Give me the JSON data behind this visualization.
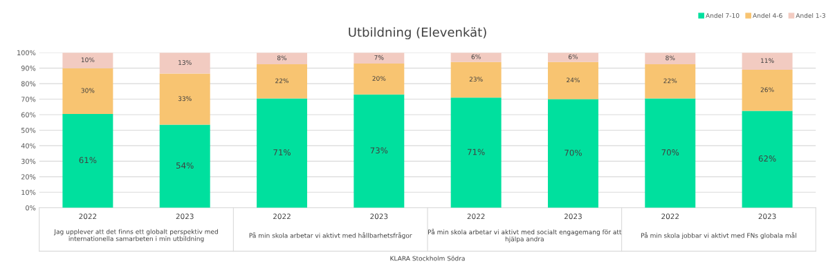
{
  "chart_data": {
    "type": "bar",
    "stacked": true,
    "title": "Utbildning (Elevenkät)",
    "categories": [
      "2022",
      "2023",
      "2022",
      "2023",
      "2022",
      "2023",
      "2022",
      "2023"
    ],
    "series": [
      {
        "name": "Andel 7-10",
        "color": "#00e09e",
        "values": [
          60.5,
          53.5,
          70.5,
          73,
          71,
          70,
          70.5,
          62.5
        ],
        "value_labels": [
          "61%",
          "54%",
          "71%",
          "73%",
          "71%",
          "70%",
          "70%",
          "62%"
        ]
      },
      {
        "name": "Andel 4-6",
        "color": "#f8c471",
        "values": [
          29.5,
          33,
          22,
          20,
          23,
          24,
          22,
          26.5
        ],
        "value_labels": [
          "30%",
          "33%",
          "22%",
          "20%",
          "23%",
          "24%",
          "22%",
          "26%"
        ]
      },
      {
        "name": "Andel 1-3",
        "color": "#f2cbc1",
        "values": [
          10,
          13.5,
          7.5,
          7,
          6,
          6,
          7.5,
          11
        ],
        "value_labels": [
          "10%",
          "13%",
          "8%",
          "7%",
          "6%",
          "6%",
          "8%",
          "11%"
        ]
      }
    ],
    "ylim": [
      0,
      100
    ],
    "yticks": [
      {
        "value": 0,
        "label": "0%"
      },
      {
        "value": 10,
        "label": "10%"
      },
      {
        "value": 20,
        "label": "20%"
      },
      {
        "value": 30,
        "label": "30%"
      },
      {
        "value": 40,
        "label": "40%"
      },
      {
        "value": 50,
        "label": "50%"
      },
      {
        "value": 60,
        "label": "60%"
      },
      {
        "value": 70,
        "label": "70%"
      },
      {
        "value": 80,
        "label": "80%"
      },
      {
        "value": 90,
        "label": "90%"
      },
      {
        "value": 100,
        "label": "100%"
      }
    ],
    "grid": "y",
    "legend": "top right",
    "annotations": [
      "Jag upplever att det finns ett globalt perspektiv med\ninternationella samarbeten i min utbildning",
      "På min skola arbetar vi aktivt med hållbarhetsfrågor",
      "På min skola arbetar vi aktivt med socialt engagemang för att\nhjälpa andra",
      "På min skola jobbar vi aktivt med FNs globala mål",
      "KLARA Stockholm Södra"
    ]
  }
}
